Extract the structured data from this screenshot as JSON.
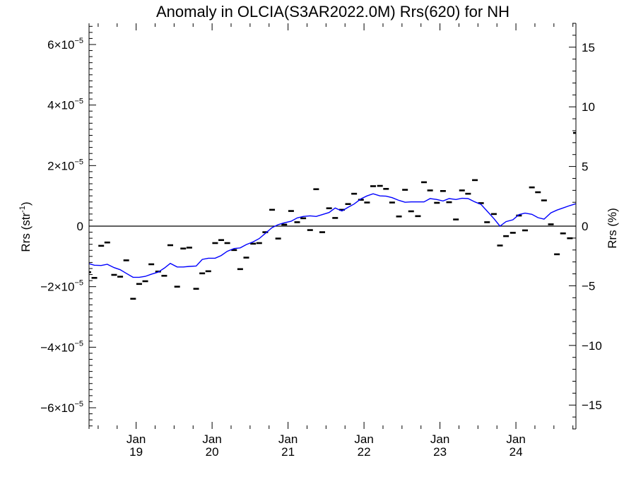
{
  "chart_data": {
    "type": "line",
    "title": "Anomaly in OLCIA(S3AR2022.0M) Rrs(620) for NH",
    "ylabel_left": {
      "base": "Rrs (str",
      "sup": "-1",
      "close": ")"
    },
    "ylabel_right": "Rrs (%)",
    "x_axis": {
      "range": [
        2018.38,
        2024.79
      ],
      "ticks": [
        {
          "x": 2019.0,
          "top": "Jan",
          "bottom": "19"
        },
        {
          "x": 2020.0,
          "top": "Jan",
          "bottom": "20"
        },
        {
          "x": 2021.0,
          "top": "Jan",
          "bottom": "21"
        },
        {
          "x": 2022.0,
          "top": "Jan",
          "bottom": "22"
        },
        {
          "x": 2023.0,
          "top": "Jan",
          "bottom": "23"
        },
        {
          "x": 2024.0,
          "top": "Jan",
          "bottom": "24"
        }
      ]
    },
    "y_left": {
      "range": [
        -6.7e-05,
        6.7e-05
      ],
      "ticks": [
        {
          "v": 6e-05,
          "mant": "6×10",
          "exp": "−5"
        },
        {
          "v": 4e-05,
          "mant": "4×10",
          "exp": "−5"
        },
        {
          "v": 2e-05,
          "mant": "2×10",
          "exp": "−5"
        },
        {
          "v": 0,
          "mant": "0",
          "exp": ""
        },
        {
          "v": -2e-05,
          "mant": "−2×10",
          "exp": "−5"
        },
        {
          "v": -4e-05,
          "mant": "−4×10",
          "exp": "−5"
        },
        {
          "v": -6e-05,
          "mant": "−6×10",
          "exp": "−5"
        }
      ]
    },
    "y_right": {
      "range": [
        -17.0,
        17.0
      ],
      "ticks": [
        {
          "v": 15,
          "label": "15"
        },
        {
          "v": 10,
          "label": "10"
        },
        {
          "v": 5,
          "label": "5"
        },
        {
          "v": 0,
          "label": "0"
        },
        {
          "v": -5,
          "label": "−5"
        },
        {
          "v": -10,
          "label": "−10"
        },
        {
          "v": -15,
          "label": "−15"
        }
      ]
    },
    "zero_line": true,
    "series": [
      {
        "style": "dash-markers",
        "color": "#000000",
        "x": [
          2018.37,
          2018.45,
          2018.54,
          2018.62,
          2018.71,
          2018.79,
          2018.87,
          2018.96,
          2019.04,
          2019.12,
          2019.2,
          2019.29,
          2019.37,
          2019.45,
          2019.54,
          2019.62,
          2019.7,
          2019.79,
          2019.87,
          2019.95,
          2020.04,
          2020.12,
          2020.2,
          2020.29,
          2020.37,
          2020.45,
          2020.54,
          2020.62,
          2020.7,
          2020.79,
          2020.87,
          2020.95,
          2021.04,
          2021.12,
          2021.2,
          2021.29,
          2021.37,
          2021.45,
          2021.54,
          2021.62,
          2021.71,
          2021.79,
          2021.87,
          2021.96,
          2022.04,
          2022.12,
          2022.21,
          2022.29,
          2022.37,
          2022.46,
          2022.54,
          2022.62,
          2022.71,
          2022.79,
          2022.87,
          2022.96,
          2023.04,
          2023.12,
          2023.21,
          2023.29,
          2023.37,
          2023.46,
          2023.54,
          2023.62,
          2023.71,
          2023.79,
          2023.87,
          2023.96,
          2024.04,
          2024.12,
          2024.21,
          2024.29,
          2024.37,
          2024.46,
          2024.54,
          2024.62,
          2024.71,
          2024.79
        ],
        "y": [
          -1.52e-05,
          -1.71e-05,
          -6.5e-06,
          -5.4e-06,
          -1.61e-05,
          -1.67e-05,
          -1.13e-05,
          -2.4e-05,
          -1.91e-05,
          -1.82e-05,
          -1.26e-05,
          -1.5e-05,
          -1.64e-05,
          -6.3e-06,
          -2e-05,
          -7.4e-06,
          -7.1e-06,
          -2.07e-05,
          -1.56e-05,
          -1.49e-05,
          -5.6e-06,
          -4.6e-06,
          -5.6e-06,
          -7.9e-06,
          -1.42e-05,
          -1.04e-05,
          -5.8e-06,
          -5.6e-06,
          -2e-06,
          5.4e-06,
          -4.1e-06,
          5e-07,
          5e-06,
          1.3e-06,
          2.6e-06,
          -1.3e-06,
          1.22e-05,
          -2e-06,
          5.9e-06,
          2.7e-06,
          5.4e-06,
          7.3e-06,
          1.07e-05,
          8.7e-06,
          7.8e-06,
          1.32e-05,
          1.33e-05,
          1.23e-05,
          7.8e-06,
          3.2e-06,
          1.2e-05,
          4.9e-06,
          3.3e-06,
          1.45e-05,
          1.18e-05,
          7.7e-06,
          1.16e-05,
          7.9e-06,
          2.2e-06,
          1.18e-05,
          1.07e-05,
          1.52e-05,
          7.6e-06,
          1.3e-06,
          4e-06,
          -6.4e-06,
          -3.3e-06,
          -2.2e-06,
          3.5e-06,
          -1.4e-06,
          1.28e-05,
          1.12e-05,
          8.5e-06,
          6e-07,
          -9.3e-06,
          -2.4e-06,
          -4e-06,
          3.08e-05
        ]
      },
      {
        "style": "line",
        "color": "#0000ff",
        "x": [
          2018.37,
          2018.45,
          2018.54,
          2018.62,
          2018.71,
          2018.79,
          2018.87,
          2018.96,
          2019.04,
          2019.12,
          2019.2,
          2019.29,
          2019.37,
          2019.45,
          2019.54,
          2019.62,
          2019.7,
          2019.79,
          2019.87,
          2019.95,
          2020.04,
          2020.12,
          2020.2,
          2020.29,
          2020.37,
          2020.45,
          2020.54,
          2020.62,
          2020.7,
          2020.79,
          2020.87,
          2020.95,
          2021.04,
          2021.12,
          2021.2,
          2021.29,
          2021.37,
          2021.45,
          2021.54,
          2021.62,
          2021.71,
          2021.79,
          2021.87,
          2021.96,
          2022.04,
          2022.12,
          2022.21,
          2022.29,
          2022.37,
          2022.46,
          2022.54,
          2022.62,
          2022.71,
          2022.79,
          2022.87,
          2022.96,
          2023.04,
          2023.12,
          2023.21,
          2023.29,
          2023.37,
          2023.46,
          2023.54,
          2023.62,
          2023.71,
          2023.79,
          2023.87,
          2023.96,
          2024.04,
          2024.12,
          2024.21,
          2024.29,
          2024.37,
          2024.46,
          2024.54,
          2024.62,
          2024.71,
          2024.79
        ],
        "y": [
          -1.23e-05,
          -1.29e-05,
          -1.3e-05,
          -1.26e-05,
          -1.37e-05,
          -1.44e-05,
          -1.56e-05,
          -1.69e-05,
          -1.69e-05,
          -1.66e-05,
          -1.59e-05,
          -1.52e-05,
          -1.39e-05,
          -1.23e-05,
          -1.35e-05,
          -1.35e-05,
          -1.33e-05,
          -1.32e-05,
          -1.1e-05,
          -1.06e-05,
          -1.06e-05,
          -9.7e-06,
          -8.3e-06,
          -7.4e-06,
          -7.2e-06,
          -6.1e-06,
          -5.2e-06,
          -4.1e-06,
          -2.4e-06,
          -5e-07,
          5e-07,
          1.1e-06,
          1.6e-06,
          2.7e-06,
          3.2e-06,
          3.4e-06,
          3.2e-06,
          3.8e-06,
          4.5e-06,
          6e-06,
          5e-06,
          6.2e-06,
          7.3e-06,
          9e-06,
          1e-05,
          1.07e-05,
          1e-05,
          9.9e-06,
          9.4e-06,
          8.5e-06,
          7.9e-06,
          8e-06,
          8e-06,
          8e-06,
          9.1e-06,
          8.8e-06,
          8.3e-06,
          9.1e-06,
          8.8e-06,
          9.2e-06,
          9.1e-06,
          8e-06,
          7.2e-06,
          5e-06,
          2.5e-06,
          0.0,
          1.5e-06,
          2.1e-06,
          3.8e-06,
          4.3e-06,
          3.9e-06,
          2.8e-06,
          2.3e-06,
          4.4e-06,
          5.3e-06,
          6e-06,
          6.8e-06,
          7.4e-06
        ]
      }
    ]
  }
}
